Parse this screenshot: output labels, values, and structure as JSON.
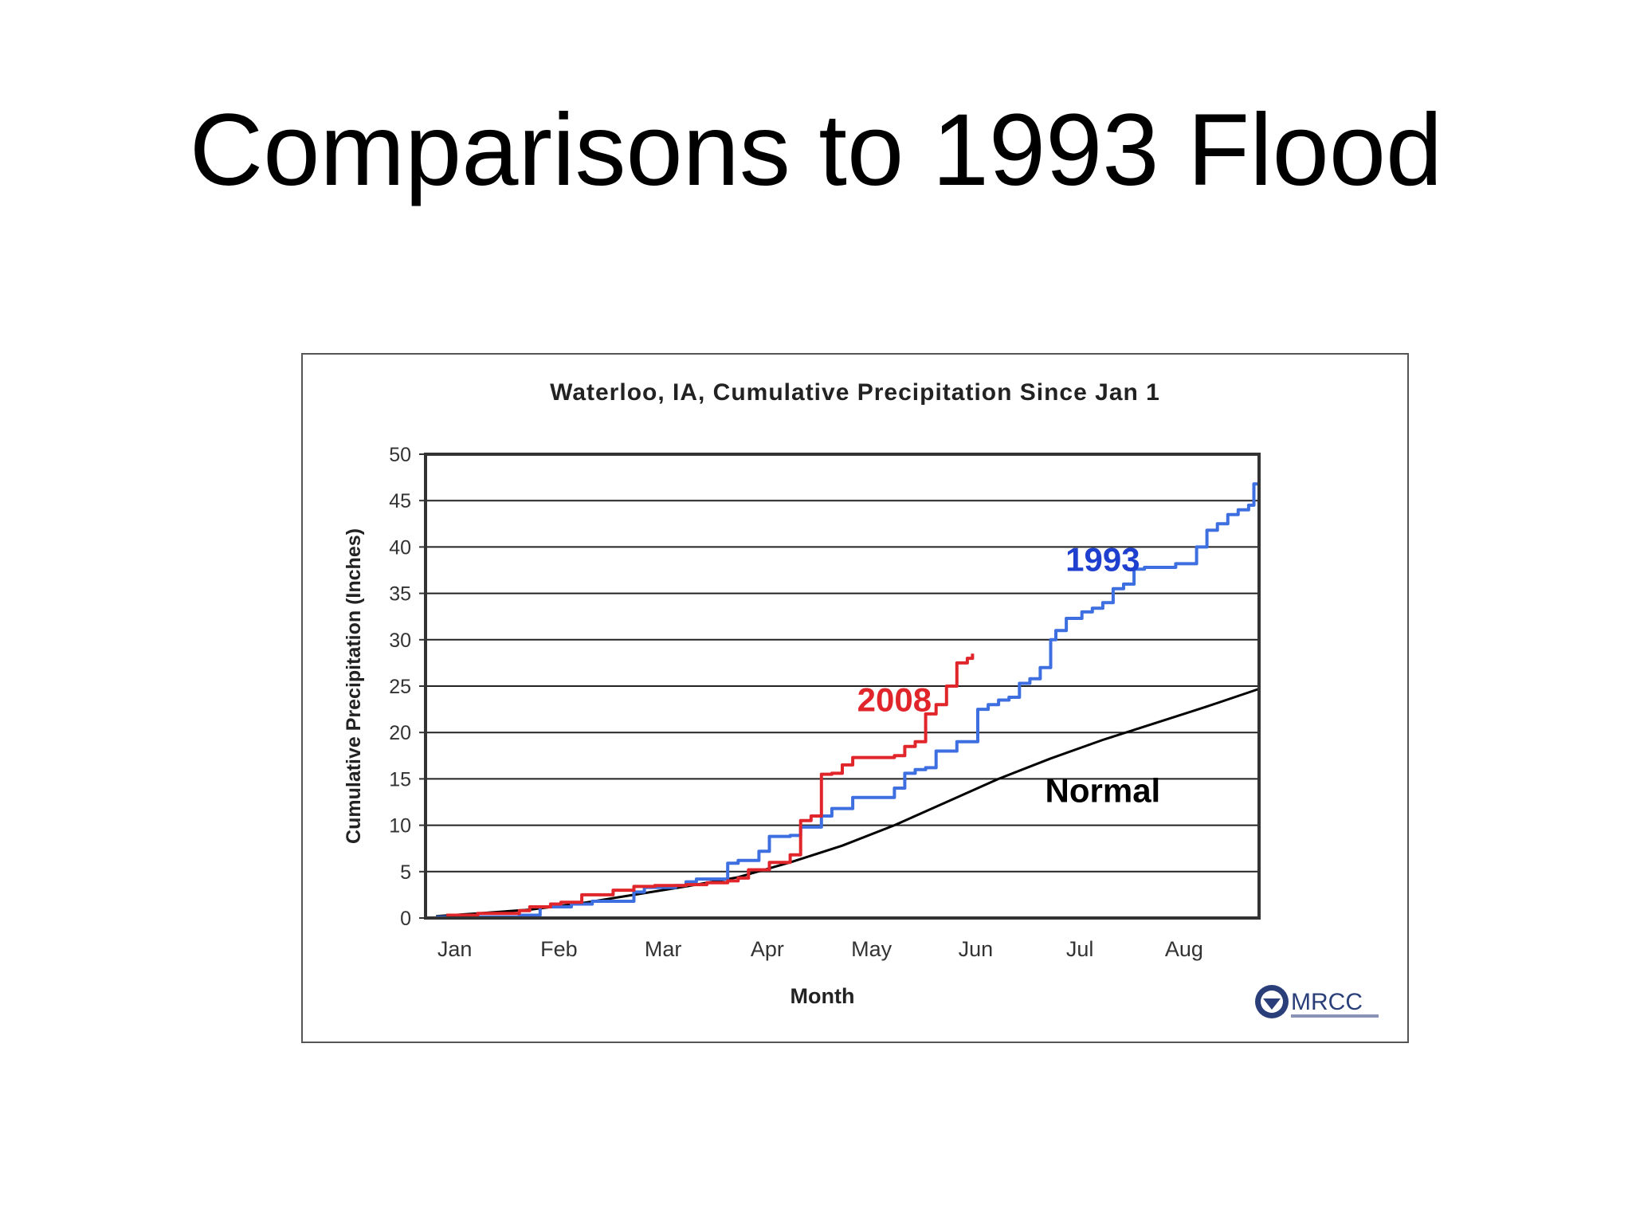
{
  "slide": {
    "title": "Comparisons to 1993 Flood"
  },
  "chart_data": {
    "type": "line",
    "title": "Waterloo, IA, Cumulative Precipitation Since Jan 1",
    "xlabel": "Month",
    "ylabel": "Cumulative Precipitation (Inches)",
    "x_unit": "month",
    "xlim": [
      0,
      8
    ],
    "ylim": [
      0,
      50
    ],
    "ytick_step": 5,
    "yticks": [
      "0",
      "5",
      "10",
      "15",
      "20",
      "25",
      "30",
      "35",
      "40",
      "45",
      "50"
    ],
    "categories": [
      "Jan",
      "Feb",
      "Mar",
      "Apr",
      "May",
      "Jun",
      "Jul",
      "Aug"
    ],
    "grid": true,
    "series": [
      {
        "name": "Normal",
        "color": "#000000",
        "x": [
          0.1,
          0.5,
          1.0,
          1.5,
          2.0,
          2.5,
          3.0,
          3.5,
          4.0,
          4.5,
          5.0,
          5.5,
          6.0,
          6.5,
          7.0,
          7.5,
          8.0
        ],
        "y": [
          0.2,
          0.5,
          0.9,
          1.6,
          2.5,
          3.4,
          4.4,
          6.0,
          7.8,
          10.0,
          12.5,
          15.0,
          17.2,
          19.2,
          21.0,
          22.8,
          24.7
        ]
      },
      {
        "name": "1993",
        "color": "#3d6fe0",
        "x": [
          0.1,
          0.9,
          1.1,
          1.4,
          1.6,
          2.0,
          2.1,
          2.4,
          2.5,
          2.6,
          2.9,
          3.0,
          3.2,
          3.3,
          3.5,
          3.6,
          3.8,
          3.9,
          4.1,
          4.2,
          4.5,
          4.6,
          4.7,
          4.8,
          4.9,
          5.1,
          5.3,
          5.4,
          5.5,
          5.6,
          5.7,
          5.8,
          5.9,
          6.0,
          6.05,
          6.15,
          6.3,
          6.4,
          6.5,
          6.6,
          6.7,
          6.8,
          6.9,
          7.0,
          7.2,
          7.4,
          7.5,
          7.6,
          7.7,
          7.8,
          7.9,
          7.95,
          8.0
        ],
        "y": [
          0.1,
          0.3,
          1.2,
          1.5,
          1.8,
          2.8,
          3.3,
          3.5,
          3.9,
          4.2,
          5.9,
          6.2,
          7.2,
          8.8,
          8.9,
          9.8,
          11.0,
          11.8,
          13.0,
          13.0,
          14.0,
          15.6,
          16.0,
          16.2,
          18.0,
          19.0,
          22.5,
          23.0,
          23.5,
          23.8,
          25.3,
          25.8,
          27.0,
          30.0,
          31.0,
          32.3,
          33.0,
          33.4,
          34.0,
          35.5,
          36.0,
          37.6,
          37.8,
          37.8,
          38.2,
          40.0,
          41.8,
          42.5,
          43.5,
          44.0,
          44.5,
          46.8,
          47.0
        ]
      },
      {
        "name": "2008",
        "color": "#e0262b",
        "x": [
          0.2,
          0.5,
          0.9,
          1.0,
          1.2,
          1.3,
          1.5,
          1.8,
          2.0,
          2.2,
          2.5,
          2.7,
          2.9,
          3.0,
          3.1,
          3.3,
          3.5,
          3.6,
          3.7,
          3.8,
          3.9,
          4.0,
          4.1,
          4.5,
          4.6,
          4.7,
          4.8,
          4.9,
          5.0,
          5.1,
          5.2,
          5.25
        ],
        "y": [
          0.3,
          0.5,
          0.8,
          1.2,
          1.5,
          1.7,
          2.5,
          3.0,
          3.4,
          3.5,
          3.6,
          3.8,
          4.0,
          4.3,
          5.2,
          6.0,
          6.8,
          10.5,
          11.0,
          15.5,
          15.6,
          16.5,
          17.3,
          17.5,
          18.5,
          19.0,
          22.0,
          23.0,
          25.0,
          27.5,
          28.0,
          28.5
        ]
      }
    ],
    "annotations": [
      {
        "text": "1993",
        "color": "#1f3fcf",
        "x": 6.5,
        "y": 37.4
      },
      {
        "text": "2008",
        "color": "#e0262b",
        "x": 4.5,
        "y": 22.3
      },
      {
        "text": "Normal",
        "color": "#000000",
        "x": 6.5,
        "y": 12.5
      }
    ],
    "logo": {
      "text": "MRCC",
      "name": "mrcc-logo"
    }
  }
}
